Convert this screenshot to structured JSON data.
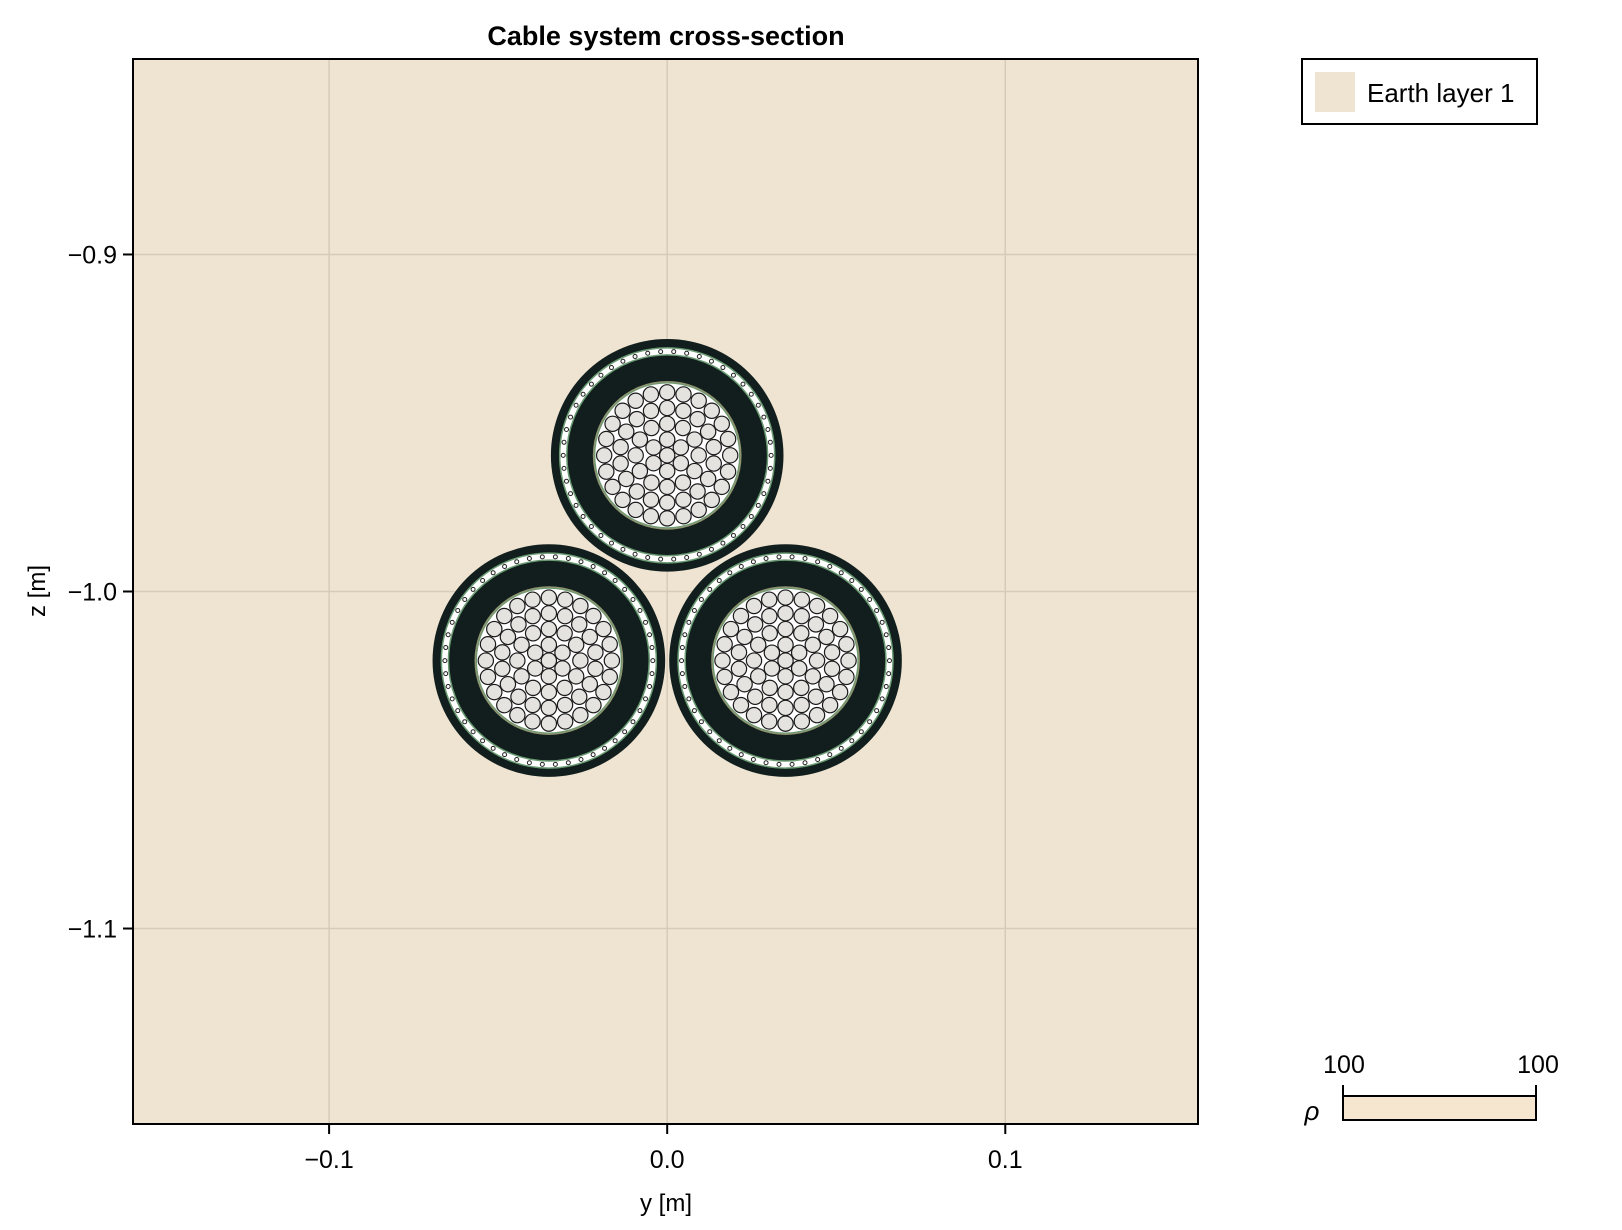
{
  "chart_data": {
    "type": "cross-section",
    "title": "Cable system cross-section",
    "xlabel": "y [m]",
    "ylabel": "z [m]",
    "xlim": [
      -0.158,
      0.157
    ],
    "ylim": [
      -1.158,
      -0.842
    ],
    "grid": true,
    "x_ticks": [
      {
        "value": -0.1,
        "label": "−0.1"
      },
      {
        "value": 0.0,
        "label": "0.0"
      },
      {
        "value": 0.1,
        "label": "0.1"
      }
    ],
    "y_ticks": [
      {
        "value": -0.9,
        "label": "−0.9"
      },
      {
        "value": -1.0,
        "label": "−1.0"
      },
      {
        "value": -1.1,
        "label": "−1.1"
      }
    ],
    "background_region": {
      "name": "Earth layer 1",
      "color": "#efe4d1",
      "resistivity": 100
    },
    "cables": [
      {
        "name": "cable-top",
        "y": 0.0,
        "z": -0.9596
      },
      {
        "name": "cable-bottom-left",
        "y": -0.035,
        "z": -1.0205
      },
      {
        "name": "cable-bottom-right",
        "y": 0.035,
        "z": -1.0205
      }
    ],
    "cable_layers_m": {
      "jacket_outer": 0.0344,
      "jacket_inner": 0.0321,
      "screen_outer": 0.0318,
      "screen_inner": 0.0297,
      "insulation_inner": 0.022,
      "core_radius": 0.0214,
      "strand_rings": [
        1,
        6,
        12,
        18,
        24
      ],
      "screen_wire_count": 50
    },
    "legend": {
      "position": "top-right-outside",
      "entries": [
        {
          "label": "Earth layer 1",
          "color": "#efe4d1"
        }
      ]
    },
    "colorbar": {
      "label": "ρ",
      "min_label": "100",
      "max_label": "100",
      "color": "#f6e6cf"
    }
  },
  "colors": {
    "earth": "#efe4d1",
    "grid": "#d6cbb8",
    "jacket": "#111e1d",
    "screen_band": "#ffffff",
    "screen_edge": "#6a9a72",
    "semicon": "#8e9470",
    "strand_fill": "#e4e3e0",
    "strand_edge": "#1a1a1a",
    "core_gap": "#ffffff",
    "colorbar": "#f6e6cf"
  }
}
